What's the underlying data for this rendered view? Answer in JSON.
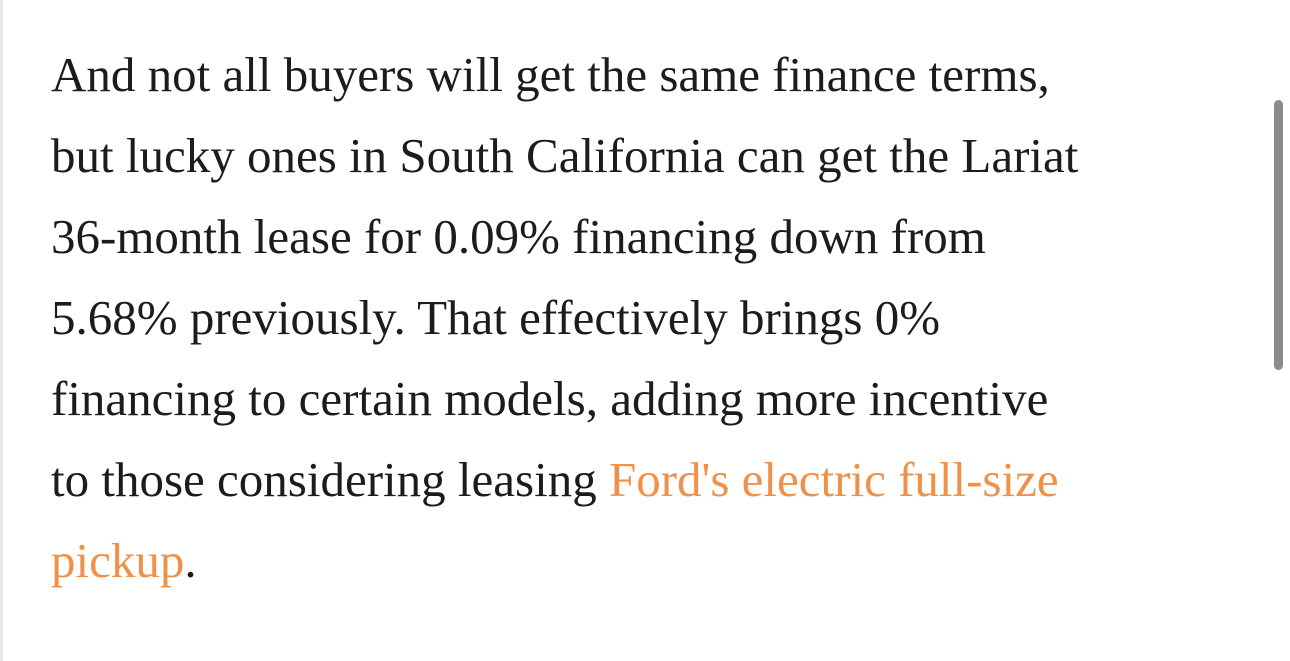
{
  "paragraph": {
    "lines": [
      "And not all buyers will get the same finance terms,",
      "but lucky ones in South California can get the Lariat",
      "36-month lease for 0.09% financing down from",
      "5.68% previously. That effectively brings 0%",
      "financing to certain models, adding more incentive",
      "to those considering leasing"
    ],
    "link": [
      "Ford's electric full-size",
      "pickup"
    ],
    "end": "."
  }
}
